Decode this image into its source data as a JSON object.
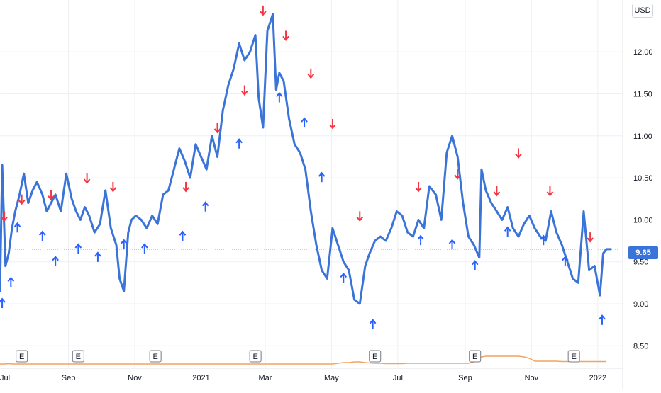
{
  "currency_label": "USD",
  "last_price_label": "9.65",
  "colors": {
    "line": "#3a74d8",
    "buy_marker": "#2962ff",
    "sell_marker": "#f23645",
    "volume": "#f4a460",
    "grid": "#eef0f3"
  },
  "earnings_marker_label": "E",
  "earnings_markers": [
    {
      "date": "2020-07-20"
    },
    {
      "date": "2020-09-10"
    },
    {
      "date": "2020-11-20"
    },
    {
      "date": "2021-02-20"
    },
    {
      "date": "2021-06-10"
    },
    {
      "date": "2021-09-10"
    },
    {
      "date": "2021-12-10"
    }
  ],
  "chart_data": {
    "type": "line",
    "title": "",
    "xlabel": "",
    "ylabel": "",
    "y_axis_position": "right",
    "ylim": [
      8.3,
      12.55
    ],
    "xlim": [
      "2020-06-30",
      "2022-01-20"
    ],
    "grid": true,
    "legend": "none",
    "y_ticks": [
      "8.50",
      "9.00",
      "9.50",
      "10.00",
      "10.50",
      "11.00",
      "11.50",
      "12.00"
    ],
    "x_ticks": [
      {
        "label": "Jul",
        "date": "2020-07-01"
      },
      {
        "label": "Sep",
        "date": "2020-09-01"
      },
      {
        "label": "Nov",
        "date": "2020-11-01"
      },
      {
        "label": "2021",
        "date": "2021-01-01"
      },
      {
        "label": "Mar",
        "date": "2021-03-01"
      },
      {
        "label": "May",
        "date": "2021-05-01"
      },
      {
        "label": "Jul",
        "date": "2021-07-01"
      },
      {
        "label": "Sep",
        "date": "2021-09-01"
      },
      {
        "label": "Nov",
        "date": "2021-11-01"
      },
      {
        "label": "2022",
        "date": "2022-01-01"
      }
    ],
    "series": [
      {
        "x": [
          "2020-06-30",
          "2020-07-02",
          "2020-07-05",
          "2020-07-08",
          "2020-07-11",
          "2020-07-14",
          "2020-07-18",
          "2020-07-22",
          "2020-07-26",
          "2020-07-30",
          "2020-08-03",
          "2020-08-08",
          "2020-08-12",
          "2020-08-16",
          "2020-08-20",
          "2020-08-25",
          "2020-08-30",
          "2020-09-04",
          "2020-09-08",
          "2020-09-12",
          "2020-09-16",
          "2020-09-20",
          "2020-09-25",
          "2020-09-30",
          "2020-10-05",
          "2020-10-10",
          "2020-10-15",
          "2020-10-18",
          "2020-10-22",
          "2020-10-26",
          "2020-10-29",
          "2020-11-02",
          "2020-11-07",
          "2020-11-12",
          "2020-11-17",
          "2020-11-22",
          "2020-11-27",
          "2020-12-02",
          "2020-12-07",
          "2020-12-12",
          "2020-12-17",
          "2020-12-22",
          "2020-12-27",
          "2021-01-01",
          "2021-01-06",
          "2021-01-11",
          "2021-01-16",
          "2021-01-21",
          "2021-01-26",
          "2021-01-31",
          "2021-02-05",
          "2021-02-10",
          "2021-02-15",
          "2021-02-20",
          "2021-02-23",
          "2021-02-27",
          "2021-03-03",
          "2021-03-08",
          "2021-03-11",
          "2021-03-14",
          "2021-03-18",
          "2021-03-23",
          "2021-03-28",
          "2021-04-02",
          "2021-04-07",
          "2021-04-12",
          "2021-04-17",
          "2021-04-22",
          "2021-04-27",
          "2021-05-02",
          "2021-05-07",
          "2021-05-12",
          "2021-05-17",
          "2021-05-22",
          "2021-05-27",
          "2021-06-01",
          "2021-06-05",
          "2021-06-10",
          "2021-06-15",
          "2021-06-20",
          "2021-06-25",
          "2021-06-30",
          "2021-07-05",
          "2021-07-10",
          "2021-07-15",
          "2021-07-20",
          "2021-07-25",
          "2021-07-30",
          "2021-08-05",
          "2021-08-10",
          "2021-08-15",
          "2021-08-20",
          "2021-08-25",
          "2021-08-30",
          "2021-09-04",
          "2021-09-09",
          "2021-09-14",
          "2021-09-16",
          "2021-09-20",
          "2021-09-25",
          "2021-09-30",
          "2021-10-05",
          "2021-10-10",
          "2021-10-15",
          "2021-10-20",
          "2021-10-25",
          "2021-10-30",
          "2021-11-04",
          "2021-11-09",
          "2021-11-14",
          "2021-11-19",
          "2021-11-24",
          "2021-11-29",
          "2021-12-04",
          "2021-12-09",
          "2021-12-14",
          "2021-12-19",
          "2021-12-24",
          "2021-12-29",
          "2022-01-03",
          "2022-01-06",
          "2022-01-09",
          "2022-01-13"
        ],
        "values": [
          9.15,
          10.65,
          9.45,
          9.6,
          9.9,
          10.1,
          10.3,
          10.55,
          10.2,
          10.35,
          10.45,
          10.3,
          10.1,
          10.2,
          10.3,
          10.1,
          10.55,
          10.25,
          10.1,
          10.0,
          10.15,
          10.05,
          9.85,
          9.95,
          10.35,
          9.9,
          9.7,
          9.3,
          9.15,
          9.85,
          10.0,
          10.05,
          10.0,
          9.9,
          10.05,
          9.95,
          10.3,
          10.35,
          10.6,
          10.85,
          10.7,
          10.5,
          10.9,
          10.75,
          10.6,
          11.0,
          10.75,
          11.3,
          11.6,
          11.8,
          12.1,
          11.9,
          12.0,
          12.2,
          11.45,
          11.1,
          12.25,
          12.45,
          11.55,
          11.75,
          11.65,
          11.2,
          10.9,
          10.8,
          10.6,
          10.1,
          9.7,
          9.4,
          9.3,
          9.9,
          9.7,
          9.5,
          9.4,
          9.05,
          9.0,
          9.45,
          9.6,
          9.75,
          9.8,
          9.75,
          9.9,
          10.1,
          10.05,
          9.85,
          9.8,
          10.0,
          9.9,
          10.4,
          10.3,
          10.0,
          10.8,
          11.0,
          10.75,
          10.2,
          9.8,
          9.7,
          9.55,
          10.6,
          10.35,
          10.2,
          10.1,
          10.0,
          10.15,
          9.9,
          9.8,
          9.95,
          10.05,
          9.9,
          9.8,
          9.75,
          10.1,
          9.85,
          9.7,
          9.5,
          9.3,
          9.25,
          10.1,
          9.4,
          9.45,
          9.1,
          9.6,
          9.65,
          9.65
        ],
        "name": ""
      }
    ],
    "buy_signals": [
      {
        "date": "2020-07-02",
        "value": 9.05
      },
      {
        "date": "2020-07-10",
        "value": 9.3
      },
      {
        "date": "2020-07-16",
        "value": 9.95
      },
      {
        "date": "2020-08-08",
        "value": 9.85
      },
      {
        "date": "2020-08-20",
        "value": 9.55
      },
      {
        "date": "2020-09-10",
        "value": 9.7
      },
      {
        "date": "2020-09-28",
        "value": 9.6
      },
      {
        "date": "2020-10-22",
        "value": 9.75
      },
      {
        "date": "2020-11-10",
        "value": 9.7
      },
      {
        "date": "2020-12-15",
        "value": 9.85
      },
      {
        "date": "2021-01-05",
        "value": 10.2
      },
      {
        "date": "2021-02-05",
        "value": 10.95
      },
      {
        "date": "2021-03-14",
        "value": 11.5
      },
      {
        "date": "2021-04-06",
        "value": 11.2
      },
      {
        "date": "2021-04-22",
        "value": 10.55
      },
      {
        "date": "2021-05-12",
        "value": 9.35
      },
      {
        "date": "2021-06-08",
        "value": 8.8
      },
      {
        "date": "2021-07-22",
        "value": 9.8
      },
      {
        "date": "2021-08-20",
        "value": 9.75
      },
      {
        "date": "2021-09-10",
        "value": 9.5
      },
      {
        "date": "2021-10-10",
        "value": 9.9
      },
      {
        "date": "2021-11-12",
        "value": 9.8
      },
      {
        "date": "2021-12-02",
        "value": 9.55
      },
      {
        "date": "2022-01-05",
        "value": 8.85
      }
    ],
    "sell_signals": [
      {
        "date": "2020-07-04",
        "value": 10.0
      },
      {
        "date": "2020-07-20",
        "value": 10.2
      },
      {
        "date": "2020-08-16",
        "value": 10.25
      },
      {
        "date": "2020-09-18",
        "value": 10.45
      },
      {
        "date": "2020-10-12",
        "value": 10.35
      },
      {
        "date": "2020-12-18",
        "value": 10.35
      },
      {
        "date": "2021-01-16",
        "value": 11.05
      },
      {
        "date": "2021-02-10",
        "value": 11.5
      },
      {
        "date": "2021-02-27",
        "value": 12.45
      },
      {
        "date": "2021-03-20",
        "value": 12.15
      },
      {
        "date": "2021-04-12",
        "value": 11.7
      },
      {
        "date": "2021-05-02",
        "value": 11.1
      },
      {
        "date": "2021-05-27",
        "value": 10.0
      },
      {
        "date": "2021-07-20",
        "value": 10.35
      },
      {
        "date": "2021-08-25",
        "value": 10.5
      },
      {
        "date": "2021-09-30",
        "value": 10.3
      },
      {
        "date": "2021-10-20",
        "value": 10.75
      },
      {
        "date": "2021-11-18",
        "value": 10.3
      },
      {
        "date": "2021-12-25",
        "value": 9.75
      }
    ],
    "volume_values": [
      0.2,
      0.2,
      0.2,
      0.25,
      0.2,
      0.2,
      0.2,
      0.2,
      0.2,
      0.2,
      0.2,
      0.2,
      0.2,
      0.2,
      0.2,
      0.2,
      0.2,
      0.2,
      0.2,
      0.2,
      0.2,
      0.2,
      0.2,
      0.2,
      0.2,
      0.2,
      0.2,
      0.2,
      0.2,
      0.2,
      0.2,
      0.2,
      0.2,
      0.2,
      0.2,
      0.2,
      0.2,
      0.2,
      0.2,
      0.2,
      0.2,
      0.2,
      0.2,
      0.2,
      0.2,
      0.2,
      0.2,
      0.2,
      0.2,
      0.2,
      0.2,
      0.2,
      0.2,
      0.2,
      0.2,
      0.2,
      0.2,
      0.2,
      0.2,
      0.2,
      0.2,
      0.2,
      0.2,
      0.2,
      0.2,
      0.2,
      0.2,
      0.2,
      0.2,
      0.2,
      0.3,
      0.4,
      0.4,
      0.5,
      0.5,
      0.4,
      0.35,
      0.3,
      0.3,
      0.25,
      0.25,
      0.25,
      0.25,
      0.3,
      0.3,
      0.3,
      0.3,
      0.3,
      0.3,
      0.3,
      0.3,
      0.3,
      0.3,
      0.3,
      0.3,
      0.5,
      0.9,
      1.2,
      1.3,
      1.3,
      1.3,
      1.3,
      1.3,
      1.3,
      1.3,
      1.2,
      1.0,
      0.6,
      0.6,
      0.6,
      0.6,
      0.6,
      0.55,
      0.55,
      0.55,
      0.55,
      0.55,
      0.55,
      0.55,
      0.55,
      0.55,
      0.55
    ]
  }
}
